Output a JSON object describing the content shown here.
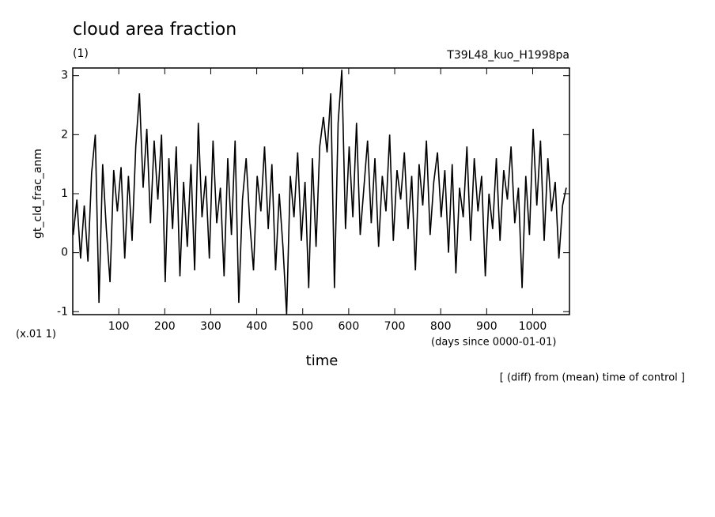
{
  "chart_data": {
    "type": "line",
    "title": "cloud area fraction",
    "subtitle": "(1)",
    "experiment": "T39L48_kuo_H1998pa",
    "y_label": "gt_cld_frac_anm",
    "y_unit": "(x.01 1)",
    "x_unit": "(days since 0000-01-01)",
    "x_label": "time",
    "annotation": "[ (diff) from (mean) time of control ]",
    "xlim": [
      0,
      1080
    ],
    "ylim": [
      -1.05,
      3.13
    ],
    "xticks": [
      100,
      200,
      300,
      400,
      500,
      600,
      700,
      800,
      900,
      1000
    ],
    "yticks": [
      -1,
      0,
      1,
      2,
      3
    ],
    "x": [
      1,
      9,
      17,
      25,
      33,
      41,
      49,
      57,
      65,
      73,
      81,
      89,
      97,
      105,
      113,
      121,
      129,
      137,
      145,
      153,
      161,
      169,
      177,
      185,
      193,
      201,
      209,
      217,
      225,
      233,
      241,
      249,
      257,
      265,
      273,
      281,
      289,
      297,
      305,
      313,
      321,
      329,
      337,
      345,
      353,
      361,
      369,
      377,
      385,
      393,
      401,
      409,
      417,
      425,
      433,
      441,
      449,
      457,
      465,
      473,
      481,
      489,
      497,
      505,
      513,
      521,
      529,
      537,
      545,
      553,
      561,
      569,
      577,
      585,
      593,
      601,
      609,
      617,
      625,
      633,
      641,
      649,
      657,
      665,
      673,
      681,
      689,
      697,
      705,
      713,
      721,
      729,
      737,
      745,
      753,
      761,
      769,
      777,
      785,
      793,
      801,
      809,
      817,
      825,
      833,
      841,
      849,
      857,
      865,
      873,
      881,
      889,
      897,
      905,
      913,
      921,
      929,
      937,
      945,
      953,
      961,
      969,
      977,
      985,
      993,
      1001,
      1009,
      1017,
      1025,
      1033,
      1041,
      1049,
      1057,
      1065,
      1073
    ],
    "series": [
      {
        "color": "#000000",
        "values": [
          0.3,
          0.9,
          -0.1,
          0.8,
          -0.15,
          1.35,
          2.0,
          -0.85,
          1.5,
          0.4,
          -0.5,
          1.4,
          0.7,
          1.45,
          -0.1,
          1.3,
          0.2,
          1.8,
          2.7,
          1.1,
          2.1,
          0.5,
          1.9,
          0.9,
          2.0,
          -0.5,
          1.6,
          0.4,
          1.8,
          -0.4,
          1.2,
          0.1,
          1.5,
          -0.3,
          2.2,
          0.6,
          1.3,
          -0.1,
          1.9,
          0.5,
          1.1,
          -0.4,
          1.6,
          0.3,
          1.9,
          -0.85,
          0.9,
          1.6,
          0.5,
          -0.3,
          1.3,
          0.7,
          1.8,
          0.4,
          1.5,
          -0.3,
          1.0,
          0.1,
          -1.05,
          1.3,
          0.6,
          1.7,
          0.2,
          1.2,
          -0.6,
          1.6,
          0.1,
          1.8,
          2.3,
          1.7,
          2.7,
          -0.6,
          2.2,
          3.1,
          0.4,
          1.8,
          0.6,
          2.2,
          0.3,
          1.1,
          1.9,
          0.5,
          1.6,
          0.1,
          1.3,
          0.7,
          2.0,
          0.2,
          1.4,
          0.9,
          1.7,
          0.4,
          1.3,
          -0.3,
          1.5,
          0.8,
          1.9,
          0.3,
          1.2,
          1.7,
          0.6,
          1.4,
          0.0,
          1.5,
          -0.35,
          1.1,
          0.6,
          1.8,
          0.2,
          1.6,
          0.7,
          1.3,
          -0.4,
          1.0,
          0.4,
          1.6,
          0.2,
          1.4,
          0.9,
          1.8,
          0.5,
          1.1,
          -0.6,
          1.3,
          0.3,
          2.1,
          0.8,
          1.9,
          0.2,
          1.6,
          0.7,
          1.2,
          -0.1,
          0.8,
          1.1
        ]
      }
    ]
  }
}
